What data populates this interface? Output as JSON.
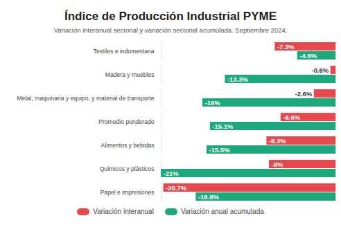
{
  "chart_data": {
    "type": "bar",
    "orientation": "horizontal",
    "title": "Índice de Producción Industrial PYME",
    "subtitle": "Variación interanual sectorial y variación sectorial acumulada. Septiembre 2024.",
    "categories": [
      "Textiles e indumentaria",
      "Madera y muebles",
      "Metal, maquinaria y equipo, y material de transporte",
      "Promedio ponderado",
      "Alimentos y bebidas",
      "Químicos y plásticos",
      "Papel e impresiones"
    ],
    "series": [
      {
        "name": "Variación interanual",
        "color": "#e8474c",
        "values": [
          -7.3,
          -0.6,
          -2.6,
          -6.6,
          -8.3,
          -8,
          -20.7
        ],
        "value_labels": [
          "-7.3%",
          "-0.6%",
          "-2.6%",
          "-6.6%",
          "-8.3%",
          "-8%",
          "-20.7%"
        ]
      },
      {
        "name": "Variación anual acumulada",
        "color": "#1ea97c",
        "values": [
          -4.6,
          -13.3,
          -16,
          -15.1,
          -15.5,
          -21,
          -16.8
        ],
        "value_labels": [
          "-4.6%",
          "-13.3%",
          "-16%",
          "-15.1%",
          "-15.5%",
          "-21%",
          "-16.8%"
        ]
      }
    ],
    "xlim": [
      -21,
      0
    ],
    "data_labels": true,
    "tick_labels": "y",
    "legend": "bottom"
  }
}
